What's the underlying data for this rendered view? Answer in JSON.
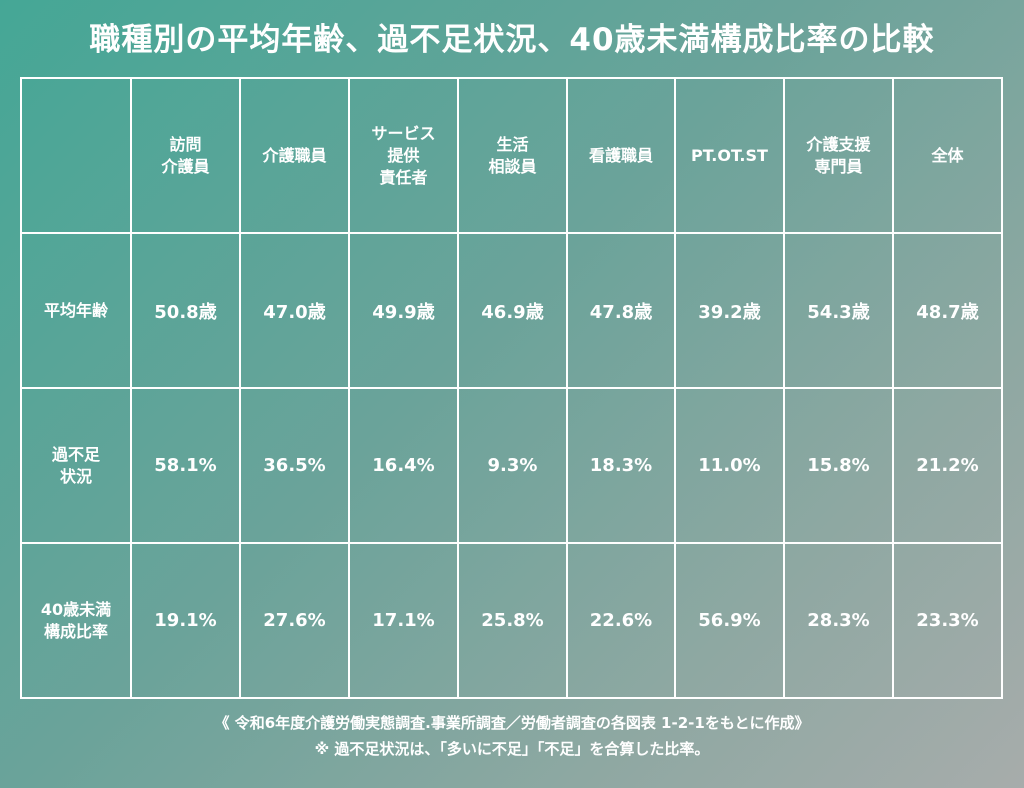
{
  "title": "職種別の平均年齢、過不足状況、40歳未満構成比率の比較",
  "table": {
    "columns": [
      "訪問\n介護員",
      "介護職員",
      "サービス\n提供\n責任者",
      "生活\n相談員",
      "看護職員",
      "PT.OT.ST",
      "介護支援\n専門員",
      "全体"
    ],
    "rows": [
      {
        "label": "平均年齢",
        "values": [
          "50.8歳",
          "47.0歳",
          "49.9歳",
          "46.9歳",
          "47.8歳",
          "39.2歳",
          "54.3歳",
          "48.7歳"
        ]
      },
      {
        "label": "過不足\n状況",
        "values": [
          "58.1%",
          "36.5%",
          "16.4%",
          "9.3%",
          "18.3%",
          "11.0%",
          "15.8%",
          "21.2%"
        ]
      },
      {
        "label": "40歳未満\n構成比率",
        "values": [
          "19.1%",
          "27.6%",
          "17.1%",
          "25.8%",
          "22.6%",
          "56.9%",
          "28.3%",
          "23.3%"
        ]
      }
    ]
  },
  "footer": {
    "source": "《 令和6年度介護労働実態調査.事業所調査／労働者調査の各図表 1-2-1をもとに作成》",
    "note": "※ 過不足状況は、「多いに不足」「不足」を合算した比率。"
  }
}
